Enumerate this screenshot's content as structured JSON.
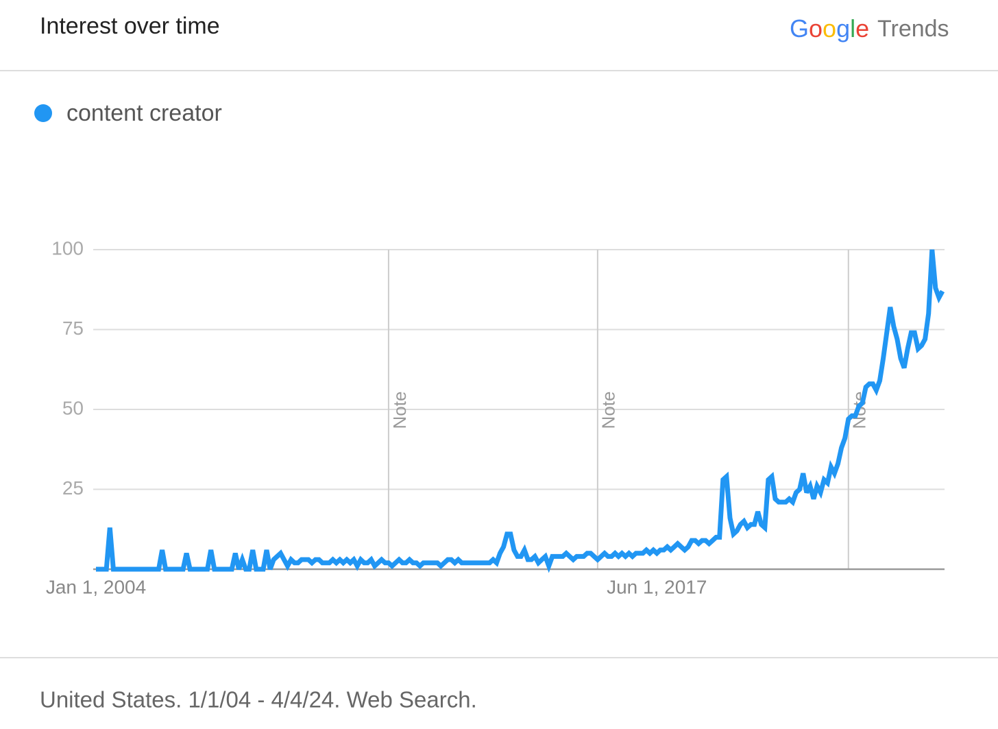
{
  "header": {
    "title": "Interest over time",
    "brand": "Google",
    "product": "Trends"
  },
  "footer": "United States. 1/1/04 - 4/4/24. Web Search.",
  "chart_data": {
    "type": "line",
    "ylim": [
      0,
      100
    ],
    "yticks": [
      25,
      50,
      75,
      100
    ],
    "grid": true,
    "categories": [
      "Jan 1, 2004",
      null,
      null,
      null,
      null,
      null,
      null,
      null,
      null,
      null,
      null,
      null,
      null,
      null,
      null,
      null,
      null,
      null,
      null,
      null,
      null,
      null,
      null,
      null,
      null,
      null,
      null,
      null,
      null,
      null,
      null,
      null,
      null,
      null,
      null,
      null,
      null,
      null,
      null,
      null,
      null,
      null,
      null,
      null,
      null,
      null,
      null,
      null,
      null,
      null,
      null,
      null,
      null,
      null,
      null,
      null,
      null,
      null,
      null,
      null,
      null,
      null,
      null,
      null,
      null,
      null,
      null,
      null,
      null,
      null,
      null,
      null,
      null,
      null,
      null,
      null,
      null,
      null,
      null,
      null,
      null,
      null,
      null,
      null,
      null,
      null,
      null,
      null,
      null,
      null,
      null,
      null,
      null,
      null,
      null,
      null,
      null,
      null,
      null,
      null,
      null,
      null,
      null,
      null,
      null,
      null,
      null,
      null,
      null,
      null,
      null,
      null,
      null,
      null,
      null,
      null,
      null,
      null,
      null,
      null,
      null,
      null,
      null,
      null,
      null,
      null,
      null,
      null,
      null,
      null,
      null,
      null,
      null,
      null,
      null,
      null,
      null,
      null,
      null,
      null,
      null,
      null,
      null,
      null,
      null,
      null,
      null,
      null,
      null,
      null,
      null,
      null,
      null,
      null,
      null,
      null,
      null,
      null,
      null,
      null,
      null,
      "Jun 1, 2017",
      null,
      null,
      null,
      null,
      null,
      null,
      null,
      null,
      null,
      null,
      null,
      null,
      null,
      null,
      null,
      null,
      null,
      null,
      null,
      null,
      null,
      null,
      null,
      null,
      null,
      null,
      null,
      null,
      null,
      null,
      null,
      null,
      null,
      null,
      null,
      null,
      null,
      null,
      null,
      null,
      null,
      null,
      null,
      null,
      null,
      null,
      null,
      null,
      null,
      null,
      null,
      null,
      null,
      null,
      null,
      null,
      null,
      null,
      null,
      null,
      null,
      null,
      null,
      null,
      null,
      null,
      null,
      null,
      null,
      null,
      null,
      null,
      null,
      null,
      null,
      null,
      null,
      null,
      null,
      null,
      null,
      null
    ],
    "series": [
      {
        "name": "content creator",
        "color": "#2196f3",
        "values": [
          0,
          0,
          0,
          0,
          13,
          0,
          0,
          0,
          0,
          0,
          0,
          0,
          0,
          0,
          0,
          0,
          0,
          0,
          0,
          6,
          0,
          0,
          0,
          0,
          0,
          0,
          5,
          0,
          0,
          0,
          0,
          0,
          0,
          6,
          0,
          0,
          0,
          0,
          0,
          0,
          5,
          0,
          3,
          0,
          0,
          6,
          0,
          0,
          0,
          6,
          0,
          3,
          4,
          5,
          3,
          1,
          3,
          2,
          2,
          3,
          3,
          3,
          2,
          3,
          3,
          2,
          2,
          2,
          3,
          2,
          3,
          2,
          3,
          2,
          3,
          1,
          3,
          2,
          2,
          3,
          1,
          2,
          3,
          2,
          2,
          1,
          2,
          3,
          2,
          2,
          3,
          2,
          2,
          1,
          2,
          2,
          2,
          2,
          2,
          1,
          2,
          3,
          3,
          2,
          3,
          2,
          2,
          2,
          2,
          2,
          2,
          2,
          2,
          2,
          3,
          2,
          5,
          7,
          11,
          11,
          6,
          4,
          4,
          6,
          3,
          3,
          4,
          2,
          3,
          4,
          1,
          4,
          4,
          4,
          4,
          5,
          4,
          3,
          4,
          4,
          4,
          5,
          5,
          4,
          3,
          4,
          5,
          4,
          4,
          5,
          4,
          5,
          4,
          5,
          4,
          5,
          5,
          5,
          6,
          5,
          6,
          5,
          6,
          6,
          7,
          6,
          7,
          8,
          7,
          6,
          7,
          9,
          9,
          8,
          9,
          9,
          8,
          9,
          10,
          10,
          28,
          29,
          16,
          11,
          12,
          14,
          15,
          13,
          14,
          14,
          18,
          14,
          13,
          28,
          29,
          22,
          21,
          21,
          21,
          22,
          21,
          24,
          25,
          30,
          24,
          26,
          22,
          26,
          24,
          28,
          27,
          32,
          30,
          33,
          38,
          41,
          47,
          48,
          48,
          51,
          52,
          57,
          58,
          58,
          56,
          59,
          66,
          74,
          82,
          76,
          72,
          66,
          63,
          69,
          74,
          74,
          69,
          70,
          72,
          80,
          100,
          88,
          85,
          87
        ]
      }
    ],
    "annotations": [
      {
        "text": "Note",
        "at": 84
      },
      {
        "text": "Note",
        "at": 144
      },
      {
        "text": "Note",
        "at": 216
      }
    ]
  }
}
